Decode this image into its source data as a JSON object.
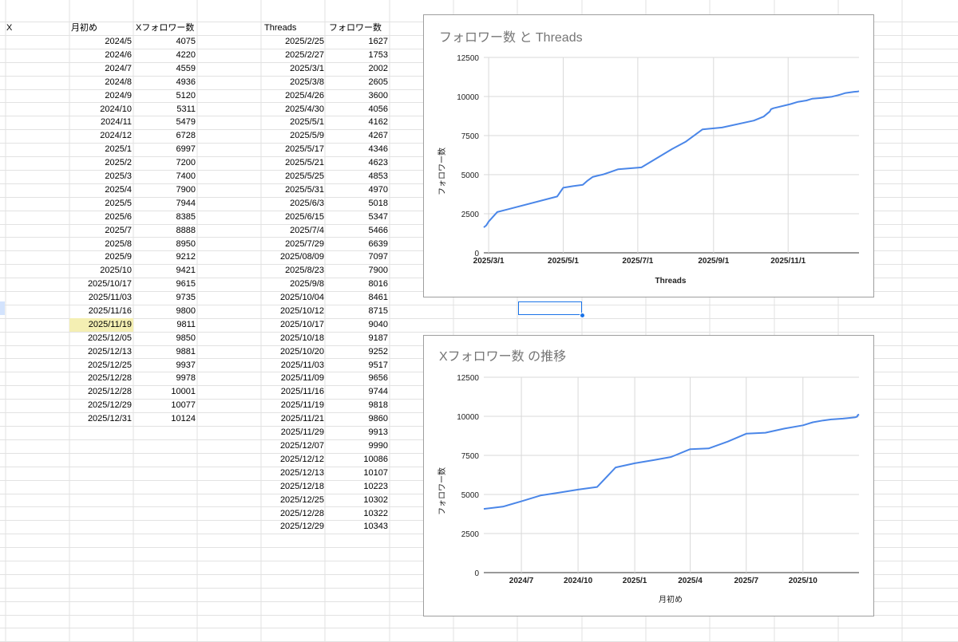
{
  "sheet": {
    "col_x_header": "X",
    "x_table": {
      "headers": [
        "月初め",
        "Xフォロワー数"
      ],
      "rows": [
        [
          "2024/5",
          "4075"
        ],
        [
          "2024/6",
          "4220"
        ],
        [
          "2024/7",
          "4559"
        ],
        [
          "2024/8",
          "4936"
        ],
        [
          "2024/9",
          "5120"
        ],
        [
          "2024/10",
          "5311"
        ],
        [
          "2024/11",
          "5479"
        ],
        [
          "2024/12",
          "6728"
        ],
        [
          "2025/1",
          "6997"
        ],
        [
          "2025/2",
          "7200"
        ],
        [
          "2025/3",
          "7400"
        ],
        [
          "2025/4",
          "7900"
        ],
        [
          "2025/5",
          "7944"
        ],
        [
          "2025/6",
          "8385"
        ],
        [
          "2025/7",
          "8888"
        ],
        [
          "2025/8",
          "8950"
        ],
        [
          "2025/9",
          "9212"
        ],
        [
          "2025/10",
          "9421"
        ],
        [
          "2025/10/17",
          "9615"
        ],
        [
          "2025/11/03",
          "9735"
        ],
        [
          "2025/11/16",
          "9800"
        ],
        [
          "2025/11/19",
          "9811"
        ],
        [
          "2025/12/05",
          "9850"
        ],
        [
          "2025/12/13",
          "9881"
        ],
        [
          "2025/12/25",
          "9937"
        ],
        [
          "2025/12/28",
          "9978"
        ],
        [
          "2025/12/28",
          "10001"
        ],
        [
          "2025/12/29",
          "10077"
        ],
        [
          "2025/12/31",
          "10124"
        ]
      ],
      "highlighted_row_index": 21,
      "highlight_color": "#f4efb3"
    },
    "threads_table": {
      "headers": [
        "Threads",
        "フォロワー数"
      ],
      "rows": [
        [
          "2025/2/25",
          "1627"
        ],
        [
          "2025/2/27",
          "1753"
        ],
        [
          "2025/3/1",
          "2002"
        ],
        [
          "2025/3/8",
          "2605"
        ],
        [
          "2025/4/26",
          "3600"
        ],
        [
          "2025/4/30",
          "4056"
        ],
        [
          "2025/5/1",
          "4162"
        ],
        [
          "2025/5/9",
          "4267"
        ],
        [
          "2025/5/17",
          "4346"
        ],
        [
          "2025/5/21",
          "4623"
        ],
        [
          "2025/5/25",
          "4853"
        ],
        [
          "2025/5/31",
          "4970"
        ],
        [
          "2025/6/3",
          "5018"
        ],
        [
          "2025/6/15",
          "5347"
        ],
        [
          "2025/7/4",
          "5466"
        ],
        [
          "2025/7/29",
          "6639"
        ],
        [
          "2025/08/09",
          "7097"
        ],
        [
          "2025/8/23",
          "7900"
        ],
        [
          "2025/9/8",
          "8016"
        ],
        [
          "2025/10/04",
          "8461"
        ],
        [
          "2025/10/12",
          "8715"
        ],
        [
          "2025/10/17",
          "9040"
        ],
        [
          "2025/10/18",
          "9187"
        ],
        [
          "2025/10/20",
          "9252"
        ],
        [
          "2025/11/03",
          "9517"
        ],
        [
          "2025/11/09",
          "9656"
        ],
        [
          "2025/11/16",
          "9744"
        ],
        [
          "2025/11/19",
          "9818"
        ],
        [
          "2025/11/21",
          "9860"
        ],
        [
          "2025/11/29",
          "9913"
        ],
        [
          "2025/12/07",
          "9990"
        ],
        [
          "2025/12/12",
          "10086"
        ],
        [
          "2025/12/13",
          "10107"
        ],
        [
          "2025/12/18",
          "10223"
        ],
        [
          "2025/12/25",
          "10302"
        ],
        [
          "2025/12/28",
          "10322"
        ],
        [
          "2025/12/29",
          "10343"
        ]
      ]
    },
    "selection_color": "#1a73e8"
  },
  "chart_data": [
    {
      "type": "line",
      "title": "フォロワー数 と Threads",
      "xlabel": "Threads",
      "ylabel": "フォロワー数",
      "x_tick_labels": [
        "2025/3/1",
        "2025/5/1",
        "2025/7/1",
        "2025/9/1",
        "2025/11/1"
      ],
      "x_ticks": [
        "2025-03-01",
        "2025-05-01",
        "2025-07-01",
        "2025-09-01",
        "2025-11-01"
      ],
      "xlim": [
        "2025-02-25",
        "2025-12-29"
      ],
      "ylim": [
        0,
        12500
      ],
      "y_ticks": [
        0,
        2500,
        5000,
        7500,
        10000,
        12500
      ],
      "grid": true,
      "line_color": "#4a86e8",
      "series": [
        {
          "x": [
            "2025-02-25",
            "2025-02-27",
            "2025-03-01",
            "2025-03-08",
            "2025-04-26",
            "2025-04-30",
            "2025-05-01",
            "2025-05-09",
            "2025-05-17",
            "2025-05-21",
            "2025-05-25",
            "2025-05-31",
            "2025-06-03",
            "2025-06-15",
            "2025-07-04",
            "2025-07-29",
            "2025-08-09",
            "2025-08-23",
            "2025-09-08",
            "2025-10-04",
            "2025-10-12",
            "2025-10-17",
            "2025-10-18",
            "2025-10-20",
            "2025-11-03",
            "2025-11-09",
            "2025-11-16",
            "2025-11-19",
            "2025-11-21",
            "2025-11-29",
            "2025-12-07",
            "2025-12-12",
            "2025-12-13",
            "2025-12-18",
            "2025-12-25",
            "2025-12-28",
            "2025-12-29"
          ],
          "values": [
            1627,
            1753,
            2002,
            2605,
            3600,
            4056,
            4162,
            4267,
            4346,
            4623,
            4853,
            4970,
            5018,
            5347,
            5466,
            6639,
            7097,
            7900,
            8016,
            8461,
            8715,
            9040,
            9187,
            9252,
            9517,
            9656,
            9744,
            9818,
            9860,
            9913,
            9990,
            10086,
            10107,
            10223,
            10302,
            10322,
            10343
          ]
        }
      ]
    },
    {
      "type": "line",
      "title": "Xフォロワー数 の推移",
      "xlabel": "月初め",
      "ylabel": "フォロワー数",
      "x_tick_labels": [
        "2024/7",
        "2024/10",
        "2025/1",
        "2025/4",
        "2025/7",
        "2025/10"
      ],
      "x_ticks": [
        "2024-07-01",
        "2024-10-01",
        "2025-01-01",
        "2025-04-01",
        "2025-07-01",
        "2025-10-01"
      ],
      "xlim": [
        "2024-05-01",
        "2025-12-31"
      ],
      "ylim": [
        0,
        12500
      ],
      "y_ticks": [
        0,
        2500,
        5000,
        7500,
        10000,
        12500
      ],
      "grid": true,
      "line_color": "#4a86e8",
      "series": [
        {
          "x": [
            "2024-05-01",
            "2024-06-01",
            "2024-07-01",
            "2024-08-01",
            "2024-09-01",
            "2024-10-01",
            "2024-11-01",
            "2024-12-01",
            "2025-01-01",
            "2025-02-01",
            "2025-03-01",
            "2025-04-01",
            "2025-05-01",
            "2025-06-01",
            "2025-07-01",
            "2025-08-01",
            "2025-09-01",
            "2025-10-01",
            "2025-10-17",
            "2025-11-03",
            "2025-11-16",
            "2025-11-19",
            "2025-12-05",
            "2025-12-13",
            "2025-12-25",
            "2025-12-28",
            "2025-12-28",
            "2025-12-29",
            "2025-12-31"
          ],
          "values": [
            4075,
            4220,
            4559,
            4936,
            5120,
            5311,
            5479,
            6728,
            6997,
            7200,
            7400,
            7900,
            7944,
            8385,
            8888,
            8950,
            9212,
            9421,
            9615,
            9735,
            9800,
            9811,
            9850,
            9881,
            9937,
            9978,
            10001,
            10077,
            10124
          ]
        }
      ]
    }
  ]
}
